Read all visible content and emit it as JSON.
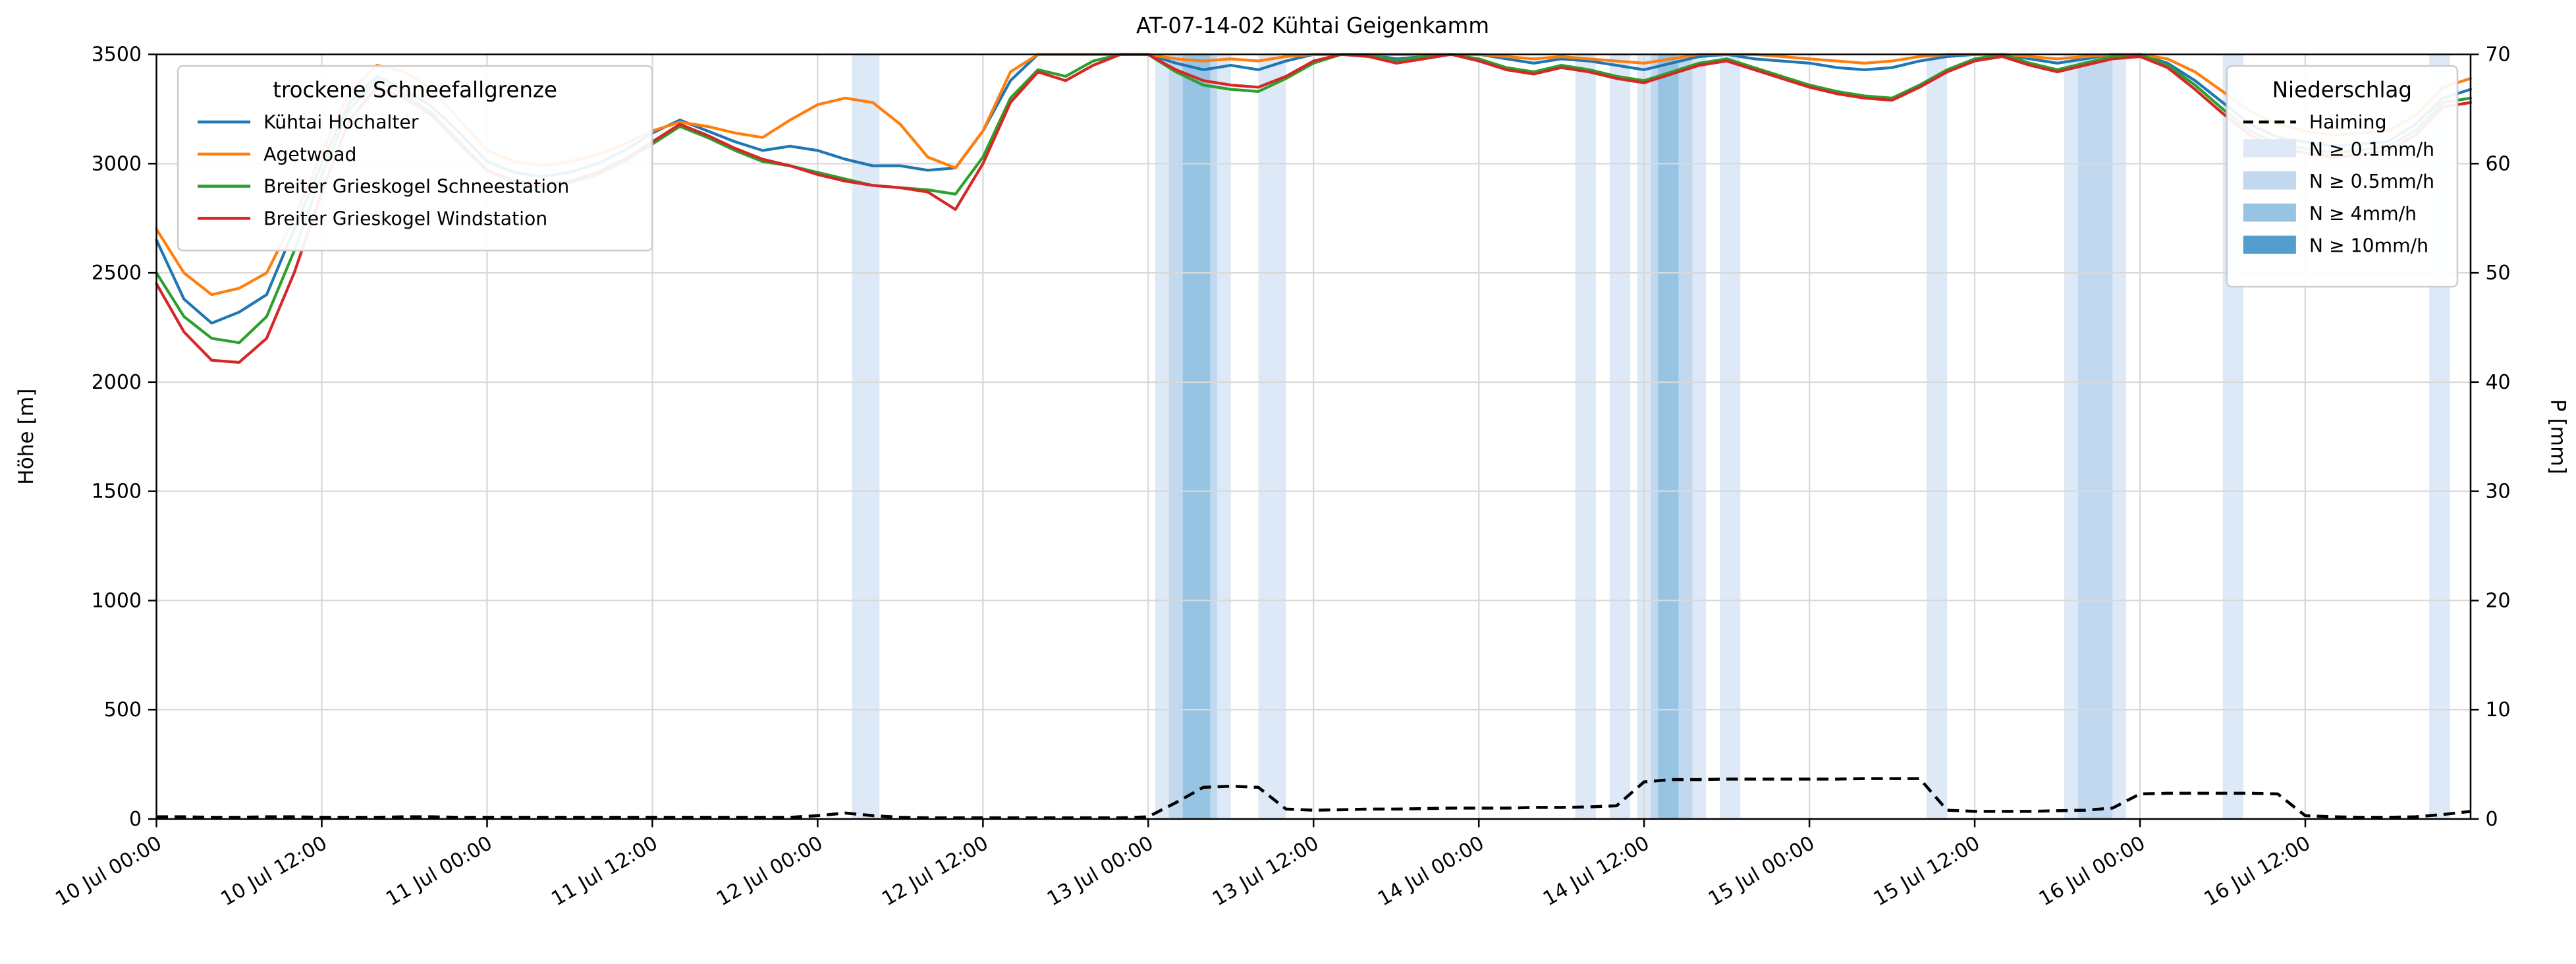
{
  "chart_data": {
    "type": "line",
    "title": "AT-07-14-02 Kühtai Geigenkamm",
    "xlabel": "",
    "ylabel_left": "Höhe [m]",
    "ylabel_right": "P [mm]",
    "xlim": [
      0,
      168
    ],
    "ylim_left": [
      0,
      3500
    ],
    "ylim_right": [
      0,
      70
    ],
    "grid": true,
    "x_unit": "hours since 10 Jul 00:00",
    "x_hours": [
      0,
      2,
      4,
      6,
      8,
      10,
      12,
      14,
      16,
      18,
      20,
      22,
      24,
      26,
      28,
      30,
      32,
      34,
      36,
      38,
      40,
      42,
      44,
      46,
      48,
      50,
      52,
      54,
      56,
      58,
      60,
      62,
      64,
      66,
      68,
      70,
      72,
      74,
      76,
      78,
      80,
      82,
      84,
      86,
      88,
      90,
      92,
      94,
      96,
      98,
      100,
      102,
      104,
      106,
      108,
      110,
      112,
      114,
      116,
      118,
      120,
      122,
      124,
      126,
      128,
      130,
      132,
      134,
      136,
      138,
      140,
      142,
      144,
      146,
      148,
      150,
      152,
      154,
      156,
      158,
      160,
      162,
      164,
      166,
      168
    ],
    "x_tick_hours": [
      0,
      12,
      24,
      36,
      48,
      60,
      72,
      84,
      96,
      108,
      120,
      132,
      144,
      156
    ],
    "x_tick_labels": [
      "10 Jul 00:00",
      "10 Jul 12:00",
      "11 Jul 00:00",
      "11 Jul 12:00",
      "12 Jul 00:00",
      "12 Jul 12:00",
      "13 Jul 00:00",
      "13 Jul 12:00",
      "14 Jul 00:00",
      "14 Jul 12:00",
      "15 Jul 00:00",
      "15 Jul 12:00",
      "16 Jul 00:00",
      "16 Jul 12:00"
    ],
    "y_ticks_left": [
      0,
      500,
      1000,
      1500,
      2000,
      2500,
      3000,
      3500
    ],
    "y_ticks_right": [
      0,
      10,
      20,
      30,
      40,
      50,
      60,
      70
    ],
    "series": [
      {
        "name": "Kühtai Hochalter",
        "color": "#1f77b4",
        "axis": "left",
        "values": [
          2650,
          2380,
          2270,
          2320,
          2400,
          2700,
          3000,
          3280,
          3400,
          3340,
          3260,
          3140,
          3010,
          2960,
          2940,
          2960,
          3000,
          3060,
          3140,
          3200,
          3150,
          3100,
          3060,
          3080,
          3060,
          3020,
          2990,
          2990,
          2970,
          2980,
          3150,
          3380,
          3500,
          3500,
          3500,
          3500,
          3500,
          3460,
          3430,
          3450,
          3430,
          3470,
          3500,
          3500,
          3500,
          3480,
          3490,
          3500,
          3500,
          3480,
          3460,
          3480,
          3470,
          3450,
          3430,
          3460,
          3490,
          3500,
          3480,
          3470,
          3460,
          3440,
          3430,
          3440,
          3470,
          3490,
          3500,
          3500,
          3480,
          3460,
          3480,
          3500,
          3500,
          3460,
          3380,
          3280,
          3180,
          3120,
          3100,
          3080,
          3090,
          3100,
          3180,
          3300,
          3340
        ]
      },
      {
        "name": "Agetwoad",
        "color": "#ff7f0e",
        "axis": "left",
        "values": [
          2700,
          2500,
          2400,
          2430,
          2500,
          2750,
          3050,
          3330,
          3450,
          3420,
          3340,
          3200,
          3060,
          3010,
          2990,
          3010,
          3040,
          3090,
          3150,
          3190,
          3170,
          3140,
          3120,
          3200,
          3270,
          3300,
          3280,
          3180,
          3030,
          2980,
          3150,
          3420,
          3500,
          3500,
          3500,
          3500,
          3500,
          3480,
          3470,
          3480,
          3470,
          3490,
          3500,
          3500,
          3500,
          3500,
          3500,
          3500,
          3500,
          3490,
          3480,
          3490,
          3480,
          3470,
          3460,
          3480,
          3500,
          3500,
          3500,
          3490,
          3480,
          3470,
          3460,
          3470,
          3490,
          3500,
          3500,
          3500,
          3490,
          3480,
          3490,
          3500,
          3500,
          3480,
          3420,
          3330,
          3240,
          3180,
          3150,
          3130,
          3140,
          3150,
          3220,
          3350,
          3390
        ]
      },
      {
        "name": "Breiter Grieskogel Schneestation",
        "color": "#2ca02c",
        "axis": "left",
        "values": [
          2500,
          2300,
          2200,
          2180,
          2300,
          2600,
          2950,
          3250,
          3380,
          3320,
          3230,
          3100,
          2970,
          2910,
          2890,
          2910,
          2950,
          3010,
          3090,
          3170,
          3120,
          3060,
          3010,
          2990,
          2960,
          2930,
          2900,
          2890,
          2880,
          2860,
          3030,
          3300,
          3430,
          3400,
          3470,
          3500,
          3500,
          3420,
          3360,
          3340,
          3330,
          3390,
          3460,
          3500,
          3500,
          3470,
          3490,
          3500,
          3480,
          3440,
          3420,
          3450,
          3430,
          3400,
          3380,
          3420,
          3460,
          3480,
          3440,
          3400,
          3360,
          3330,
          3310,
          3300,
          3360,
          3430,
          3480,
          3500,
          3460,
          3430,
          3460,
          3490,
          3500,
          3450,
          3360,
          3250,
          3150,
          3090,
          3070,
          3050,
          3060,
          3080,
          3150,
          3280,
          3300
        ]
      },
      {
        "name": "Breiter Grieskogel Windstation",
        "color": "#d62728",
        "axis": "left",
        "values": [
          2450,
          2230,
          2100,
          2090,
          2200,
          2500,
          2870,
          3200,
          3350,
          3300,
          3220,
          3090,
          2970,
          2920,
          2900,
          2920,
          2960,
          3020,
          3100,
          3180,
          3130,
          3070,
          3020,
          2990,
          2950,
          2920,
          2900,
          2890,
          2870,
          2790,
          3000,
          3280,
          3420,
          3380,
          3450,
          3500,
          3500,
          3430,
          3380,
          3360,
          3350,
          3400,
          3470,
          3500,
          3490,
          3460,
          3480,
          3500,
          3470,
          3430,
          3410,
          3440,
          3420,
          3390,
          3370,
          3410,
          3450,
          3470,
          3430,
          3390,
          3350,
          3320,
          3300,
          3290,
          3350,
          3420,
          3470,
          3490,
          3450,
          3420,
          3450,
          3480,
          3490,
          3440,
          3340,
          3230,
          3130,
          3070,
          3050,
          3030,
          3040,
          3060,
          3130,
          3260,
          3280
        ]
      }
    ],
    "precip_series": {
      "name": "Haiming",
      "color": "#000000",
      "style": "dashed",
      "axis": "right",
      "values": [
        0.2,
        0.2,
        0.15,
        0.15,
        0.2,
        0.2,
        0.15,
        0.15,
        0.15,
        0.2,
        0.2,
        0.15,
        0.15,
        0.15,
        0.15,
        0.15,
        0.15,
        0.15,
        0.15,
        0.15,
        0.15,
        0.15,
        0.15,
        0.15,
        0.3,
        0.55,
        0.3,
        0.15,
        0.1,
        0.1,
        0.1,
        0.1,
        0.1,
        0.1,
        0.1,
        0.1,
        0.2,
        1.5,
        2.9,
        3.0,
        2.9,
        0.9,
        0.8,
        0.85,
        0.9,
        0.9,
        0.95,
        1.0,
        1.0,
        1.0,
        1.05,
        1.05,
        1.1,
        1.2,
        3.4,
        3.6,
        3.6,
        3.65,
        3.65,
        3.65,
        3.65,
        3.65,
        3.7,
        3.7,
        3.7,
        0.8,
        0.7,
        0.7,
        0.7,
        0.75,
        0.8,
        1.0,
        2.3,
        2.35,
        2.35,
        2.35,
        2.35,
        2.3,
        0.3,
        0.2,
        0.15,
        0.15,
        0.2,
        0.4,
        0.7
      ]
    },
    "band_levels": {
      "0.1": "#dde9f6",
      "0.5": "#c1d8ee",
      "4": "#97c4e2",
      "10": "#539ecd"
    },
    "precip_bands": [
      {
        "from": 50.5,
        "to": 52.5,
        "level": "0.1"
      },
      {
        "from": 72.5,
        "to": 78.0,
        "level": "0.1"
      },
      {
        "from": 73.5,
        "to": 77.0,
        "level": "0.5"
      },
      {
        "from": 74.5,
        "to": 76.5,
        "level": "4"
      },
      {
        "from": 80.0,
        "to": 82.0,
        "level": "0.1"
      },
      {
        "from": 103.0,
        "to": 104.5,
        "level": "0.1"
      },
      {
        "from": 105.5,
        "to": 107.0,
        "level": "0.1"
      },
      {
        "from": 107.5,
        "to": 112.5,
        "level": "0.1"
      },
      {
        "from": 108.5,
        "to": 111.5,
        "level": "0.5"
      },
      {
        "from": 109.0,
        "to": 110.5,
        "level": "4"
      },
      {
        "from": 113.5,
        "to": 115.0,
        "level": "0.1"
      },
      {
        "from": 128.5,
        "to": 130.0,
        "level": "0.1"
      },
      {
        "from": 138.5,
        "to": 143.0,
        "level": "0.1"
      },
      {
        "from": 139.5,
        "to": 142.0,
        "level": "0.5"
      },
      {
        "from": 150.0,
        "to": 151.5,
        "level": "0.1"
      },
      {
        "from": 165.0,
        "to": 166.5,
        "level": "0.1"
      }
    ],
    "legend_snowline": {
      "title": "trockene Schneefallgrenze",
      "position": "upper-left",
      "entries": [
        {
          "label": "Kühtai Hochalter",
          "color": "#1f77b4"
        },
        {
          "label": "Agetwoad",
          "color": "#ff7f0e"
        },
        {
          "label": "Breiter Grieskogel Schneestation",
          "color": "#2ca02c"
        },
        {
          "label": "Breiter Grieskogel Windstation",
          "color": "#d62728"
        }
      ]
    },
    "legend_precip": {
      "title": "Niederschlag",
      "position": "upper-right",
      "line_entry": {
        "label": "Haiming",
        "color": "#000000",
        "style": "dashed"
      },
      "band_entries": [
        {
          "label": "N ≥ 0.1mm/h",
          "level": "0.1"
        },
        {
          "label": "N ≥ 0.5mm/h",
          "level": "0.5"
        },
        {
          "label": "N ≥ 4mm/h",
          "level": "4"
        },
        {
          "label": "N ≥ 10mm/h",
          "level": "10"
        }
      ]
    }
  }
}
